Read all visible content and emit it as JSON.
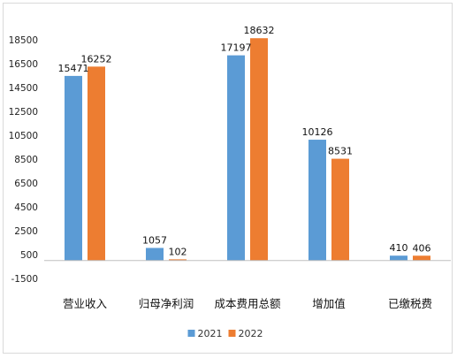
{
  "chart_data": {
    "type": "bar",
    "categories": [
      "营业收入",
      "归母净利润",
      "成本费用总额",
      "增加值",
      "已缴税费"
    ],
    "series": [
      {
        "name": "2021",
        "color": "#5b9bd5",
        "values": [
          15471,
          1057,
          17197,
          10126,
          410
        ]
      },
      {
        "name": "2022",
        "color": "#ed7d31",
        "values": [
          16252,
          102,
          18632,
          8531,
          406
        ]
      }
    ],
    "yticks": [
      -1500,
      500,
      2500,
      4500,
      6500,
      8500,
      10500,
      12500,
      14500,
      16500,
      18500
    ],
    "ylim": [
      -1500,
      18500
    ],
    "grid": false,
    "legend_position": "bottom",
    "title": "",
    "xlabel": "",
    "ylabel": ""
  }
}
